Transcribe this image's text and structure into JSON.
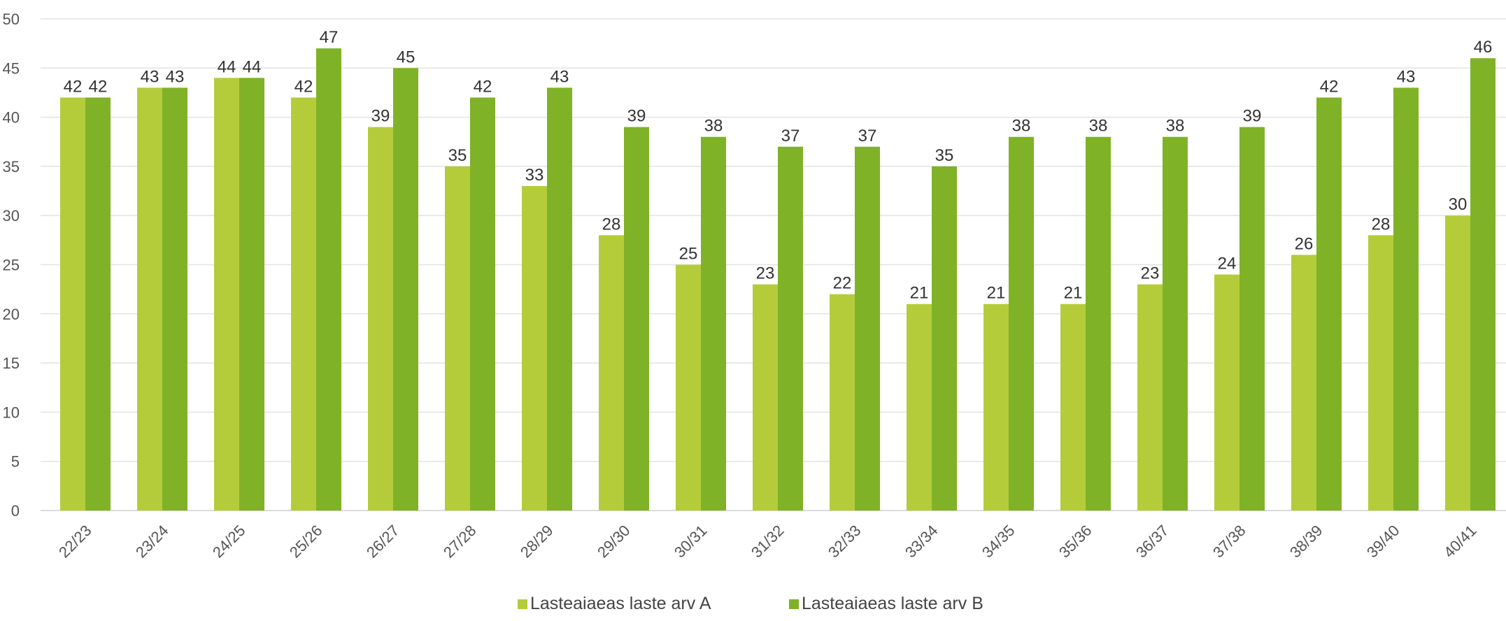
{
  "chart_data": {
    "type": "bar",
    "title": "",
    "xlabel": "",
    "ylabel": "",
    "ylim": [
      0,
      50
    ],
    "yticks": [
      0,
      5,
      10,
      15,
      20,
      25,
      30,
      35,
      40,
      45,
      50
    ],
    "grid": true,
    "legend_position": "bottom",
    "categories": [
      "22/23",
      "23/24",
      "24/25",
      "25/26",
      "26/27",
      "27/28",
      "28/29",
      "29/30",
      "30/31",
      "31/32",
      "32/33",
      "33/34",
      "34/35",
      "35/36",
      "36/37",
      "37/38",
      "38/39",
      "39/40",
      "40/41"
    ],
    "series": [
      {
        "name": "Lasteaiaeas laste arv A",
        "color": "#b5cc3a",
        "values": [
          42,
          43,
          44,
          42,
          39,
          35,
          33,
          28,
          25,
          23,
          22,
          21,
          21,
          21,
          23,
          24,
          26,
          28,
          30
        ],
        "labels": [
          "42",
          "43",
          "44",
          "42",
          "39",
          "35",
          "33",
          "28",
          "25",
          "23",
          "22",
          "21",
          "21",
          "21",
          "23",
          "24",
          "26",
          "28",
          "30"
        ]
      },
      {
        "name": "Lasteaiaeas laste arv B",
        "color": "#7fb227",
        "values": [
          42,
          43,
          44,
          47,
          45,
          42,
          43,
          39,
          38,
          37,
          37,
          35,
          38,
          38,
          38,
          39,
          42,
          43,
          46
        ],
        "labels": [
          "42",
          "43",
          "44",
          "47",
          "45",
          "42",
          "43",
          "39",
          "38",
          "37",
          "37",
          "35",
          "38",
          "38",
          "38",
          "39",
          "42",
          "43",
          "46"
        ]
      }
    ]
  }
}
